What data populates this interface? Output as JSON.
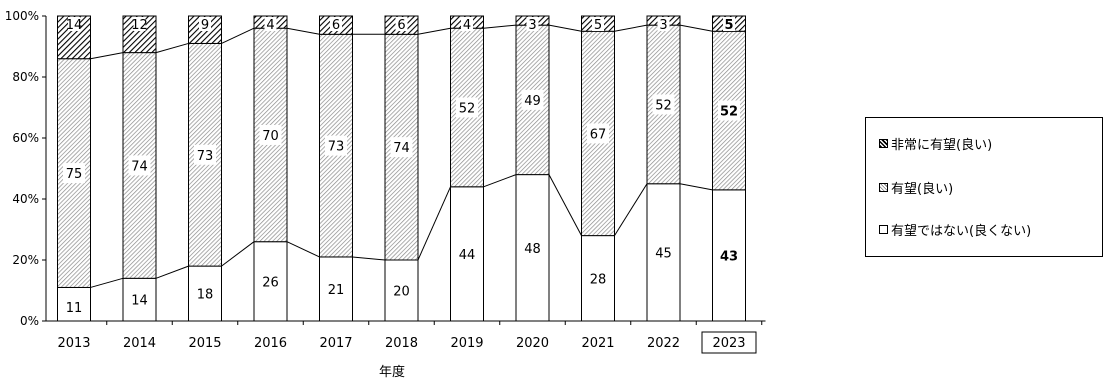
{
  "chart_data": {
    "type": "bar",
    "stacked": true,
    "percent": true,
    "categories": [
      "2013",
      "2014",
      "2015",
      "2016",
      "2017",
      "2018",
      "2019",
      "2020",
      "2021",
      "2022",
      "2023"
    ],
    "series": [
      {
        "name": "有望ではない(良くない)",
        "values": [
          11,
          14,
          18,
          26,
          21,
          20,
          44,
          48,
          28,
          45,
          43
        ],
        "color": "#ffffff"
      },
      {
        "name": "有望(良い)",
        "values": [
          75,
          74,
          73,
          70,
          73,
          74,
          52,
          49,
          67,
          52,
          52
        ],
        "color": "#bdbdbd"
      },
      {
        "name": "非常に有望(良い)",
        "values": [
          14,
          12,
          9,
          4,
          6,
          6,
          4,
          3,
          5,
          3,
          5
        ],
        "color": "#000000"
      }
    ],
    "xlabel": "年度",
    "ylabel": "",
    "ylim": [
      0,
      100
    ],
    "yticks": [
      "0%",
      "20%",
      "40%",
      "60%",
      "80%",
      "100%"
    ],
    "highlighted_category": "2023",
    "legend_position": "right",
    "grid": false
  },
  "legend": {
    "items": [
      {
        "label": "非常に有望(良い)"
      },
      {
        "label": "有望(良い)"
      },
      {
        "label": "有望ではない(良くない)"
      }
    ]
  }
}
